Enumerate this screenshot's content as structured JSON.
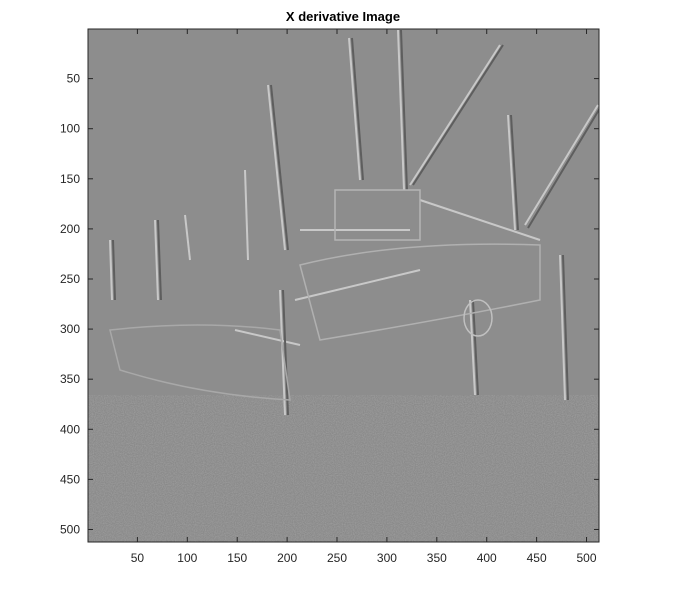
{
  "chart_data": {
    "type": "heatmap",
    "title": "X derivative Image",
    "xlabel": "",
    "ylabel": "",
    "xlim": [
      0.5,
      512.5
    ],
    "ylim": [
      0.5,
      512.5
    ],
    "y_reversed": true,
    "x_ticks": [
      50,
      100,
      150,
      200,
      250,
      300,
      350,
      400,
      450,
      500
    ],
    "y_ticks": [
      50,
      100,
      150,
      200,
      250,
      300,
      350,
      400,
      450,
      500
    ],
    "colormap": "gray",
    "grid": false,
    "content": "Grayscale x-derivative (horizontal gradient) edge image of fishing boats on a beach",
    "colors": {
      "background_mid_gray": "#8c8c8c",
      "axis": "#262626"
    }
  }
}
